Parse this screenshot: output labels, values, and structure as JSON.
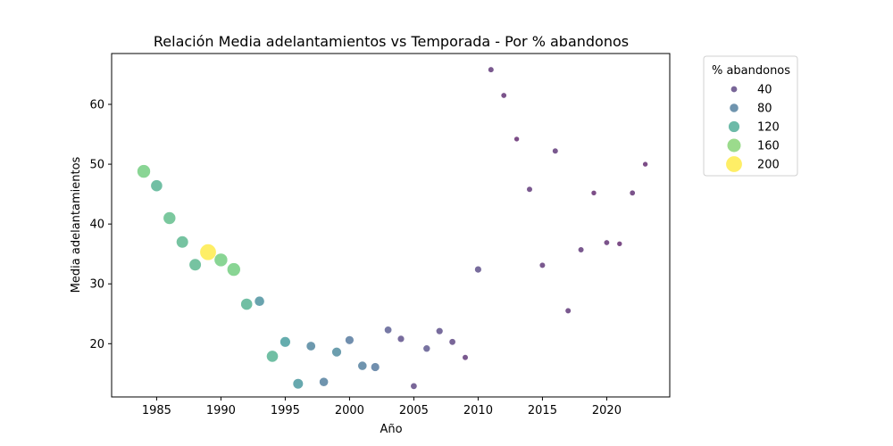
{
  "chart_data": {
    "type": "scatter",
    "title": "Relación Media adelantamientos vs Temporada - Por % abandonos",
    "xlabel": "Año",
    "ylabel": "Media adelantamientos",
    "xlim": [
      1981.5,
      2024.9
    ],
    "ylim": [
      11.1,
      68.5
    ],
    "xticks": [
      1985,
      1990,
      1995,
      2000,
      2005,
      2010,
      2015,
      2020
    ],
    "yticks": [
      20,
      30,
      40,
      50,
      60
    ],
    "grid": false,
    "legend": {
      "title": "% abandonos",
      "placement": "outside-right",
      "entries": [
        {
          "label": "40",
          "size_value": 40
        },
        {
          "label": "80",
          "size_value": 80
        },
        {
          "label": "120",
          "size_value": 120
        },
        {
          "label": "160",
          "size_value": 160
        },
        {
          "label": "200",
          "size_value": 200
        }
      ]
    },
    "points": [
      {
        "year": 1984,
        "media": 48.8,
        "abandonos": 150
      },
      {
        "year": 1985,
        "media": 46.4,
        "abandonos": 125
      },
      {
        "year": 1986,
        "media": 41.0,
        "abandonos": 135
      },
      {
        "year": 1987,
        "media": 37.0,
        "abandonos": 130
      },
      {
        "year": 1988,
        "media": 33.2,
        "abandonos": 130
      },
      {
        "year": 1989,
        "media": 35.3,
        "abandonos": 200
      },
      {
        "year": 1990,
        "media": 34.0,
        "abandonos": 150
      },
      {
        "year": 1991,
        "media": 32.4,
        "abandonos": 150
      },
      {
        "year": 1992,
        "media": 26.6,
        "abandonos": 125
      },
      {
        "year": 1993,
        "media": 27.1,
        "abandonos": 95
      },
      {
        "year": 1994,
        "media": 17.9,
        "abandonos": 125
      },
      {
        "year": 1995,
        "media": 20.3,
        "abandonos": 105
      },
      {
        "year": 1996,
        "media": 13.3,
        "abandonos": 100
      },
      {
        "year": 1997,
        "media": 19.6,
        "abandonos": 85
      },
      {
        "year": 1998,
        "media": 13.6,
        "abandonos": 80
      },
      {
        "year": 1999,
        "media": 18.6,
        "abandonos": 90
      },
      {
        "year": 2000,
        "media": 20.6,
        "abandonos": 75
      },
      {
        "year": 2001,
        "media": 16.3,
        "abandonos": 80
      },
      {
        "year": 2002,
        "media": 16.1,
        "abandonos": 75
      },
      {
        "year": 2003,
        "media": 22.3,
        "abandonos": 55
      },
      {
        "year": 2004,
        "media": 20.8,
        "abandonos": 45
      },
      {
        "year": 2005,
        "media": 12.9,
        "abandonos": 40
      },
      {
        "year": 2006,
        "media": 19.2,
        "abandonos": 50
      },
      {
        "year": 2007,
        "media": 22.1,
        "abandonos": 45
      },
      {
        "year": 2008,
        "media": 20.3,
        "abandonos": 40
      },
      {
        "year": 2009,
        "media": 17.7,
        "abandonos": 30
      },
      {
        "year": 2010,
        "media": 32.4,
        "abandonos": 45
      },
      {
        "year": 2011,
        "media": 65.8,
        "abandonos": 30
      },
      {
        "year": 2012,
        "media": 61.5,
        "abandonos": 25
      },
      {
        "year": 2013,
        "media": 54.2,
        "abandonos": 20
      },
      {
        "year": 2014,
        "media": 45.8,
        "abandonos": 30
      },
      {
        "year": 2015,
        "media": 33.1,
        "abandonos": 30
      },
      {
        "year": 2016,
        "media": 52.2,
        "abandonos": 30
      },
      {
        "year": 2017,
        "media": 25.5,
        "abandonos": 30
      },
      {
        "year": 2018,
        "media": 35.7,
        "abandonos": 30
      },
      {
        "year": 2019,
        "media": 45.2,
        "abandonos": 20
      },
      {
        "year": 2020,
        "media": 36.9,
        "abandonos": 25
      },
      {
        "year": 2021,
        "media": 36.7,
        "abandonos": 20
      },
      {
        "year": 2022,
        "media": 45.2,
        "abandonos": 25
      },
      {
        "year": 2023,
        "media": 50.0,
        "abandonos": 20
      }
    ]
  }
}
